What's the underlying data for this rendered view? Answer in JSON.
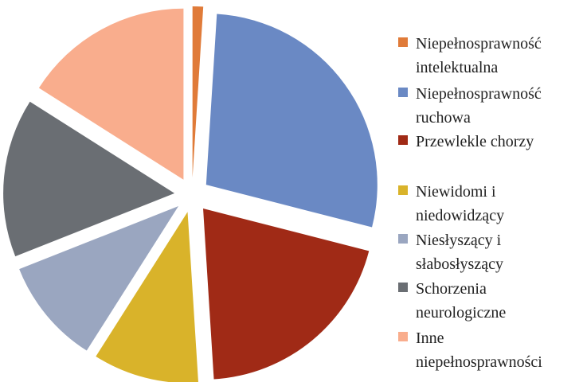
{
  "chart_data": {
    "type": "pie",
    "categories": [
      "Niepełnosprawność intelektualna",
      "Niepełnosprawność ruchowa",
      "Przewlekle chorzy",
      "Niewidomi i niedowidzący",
      "Niesłyszący i słabosłyszący",
      "Schorzenia neurologiczne",
      "Inne niepełnosprawności"
    ],
    "values": [
      1,
      28,
      20,
      10,
      10,
      15,
      16
    ],
    "colors": [
      "#e07b39",
      "#6a89c4",
      "#a02a16",
      "#d9b32a",
      "#9aa6c0",
      "#6a6e73",
      "#f9ad8d"
    ],
    "legend": "right"
  }
}
